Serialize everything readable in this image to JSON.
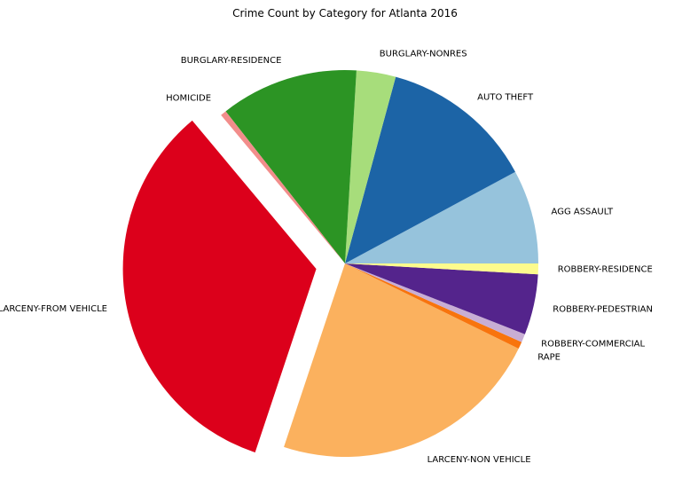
{
  "chart_data": {
    "type": "pie",
    "title": "Crime Count by Category for Atlanta 2016",
    "start_angle_deg": 0,
    "direction": "counterclockwise",
    "explode": "LARCENY-FROM VEHICLE",
    "categories": [
      "AGG ASSAULT",
      "AUTO THEFT",
      "BURGLARY-NONRES",
      "BURGLARY-RESIDENCE",
      "HOMICIDE",
      "LARCENY-FROM VEHICLE",
      "LARCENY-NON VEHICLE",
      "RAPE",
      "ROBBERY-COMMERCIAL",
      "ROBBERY-PEDESTRIAN",
      "ROBBERY-RESIDENCE"
    ],
    "values": [
      7.9,
      13.0,
      3.3,
      11.6,
      0.5,
      34.0,
      23.0,
      0.6,
      0.7,
      5.1,
      0.9
    ],
    "colors": [
      "#96c3dc",
      "#1c64a6",
      "#a7dd7b",
      "#2c9424",
      "#f28d8b",
      "#dc001b",
      "#fbb15e",
      "#f8740d",
      "#c8aed4",
      "#54248c",
      "#fdfb8d"
    ]
  }
}
